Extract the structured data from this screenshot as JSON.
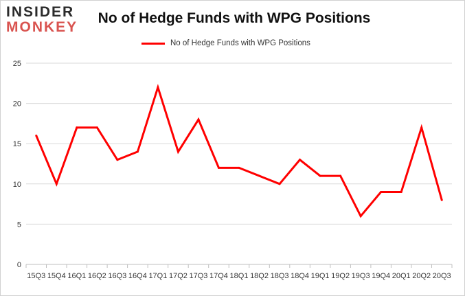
{
  "logo": {
    "line1": "INSIDER",
    "line2": "MONKEY"
  },
  "chart_data": {
    "type": "line",
    "title": "No of Hedge Funds with WPG Positions",
    "xlabel": "",
    "ylabel": "",
    "categories": [
      "15Q3",
      "15Q4",
      "16Q1",
      "16Q2",
      "16Q3",
      "16Q4",
      "17Q1",
      "17Q2",
      "17Q3",
      "17Q4",
      "18Q1",
      "18Q2",
      "18Q3",
      "18Q4",
      "19Q1",
      "19Q2",
      "19Q3",
      "19Q4",
      "20Q1",
      "20Q2",
      "20Q3"
    ],
    "series": [
      {
        "name": "No of Hedge Funds with WPG Positions",
        "color": "#ff0000",
        "values": [
          16,
          10,
          17,
          17,
          13,
          14,
          22,
          14,
          18,
          12,
          12,
          11,
          10,
          13,
          11,
          11,
          6,
          9,
          9,
          17,
          8
        ]
      }
    ],
    "ylim": [
      0,
      25
    ],
    "yticks": [
      "0",
      "5",
      "10",
      "15",
      "20",
      "25"
    ],
    "grid": true,
    "legend_position": "top-center"
  }
}
